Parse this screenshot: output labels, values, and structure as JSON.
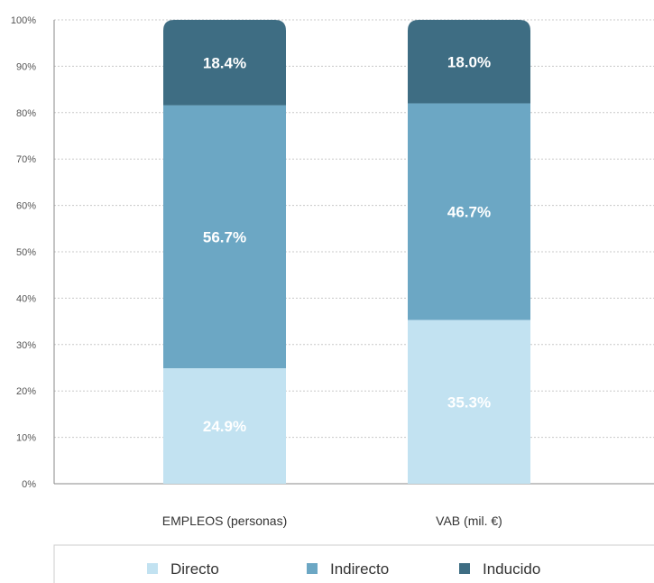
{
  "chart_data": {
    "type": "bar",
    "stacked": true,
    "normalized": true,
    "categories": [
      "EMPLEOS (personas)",
      "VAB (mil. €)"
    ],
    "series": [
      {
        "name": "Directo",
        "values": [
          24.9,
          35.3
        ],
        "labels": [
          "24.9%",
          "35.3%"
        ],
        "color": "#c2e2f1"
      },
      {
        "name": "Indirecto",
        "values": [
          56.7,
          46.7
        ],
        "labels": [
          "56.7%",
          "46.7%"
        ],
        "color": "#6ca7c4"
      },
      {
        "name": "Inducido",
        "values": [
          18.4,
          18.0
        ],
        "labels": [
          "18.4%",
          "18.0%"
        ],
        "color": "#3e6d83"
      }
    ],
    "ylim": [
      0,
      100
    ],
    "y_ticks": [
      "0%",
      "10%",
      "20%",
      "30%",
      "40%",
      "50%",
      "60%",
      "70%",
      "80%",
      "90%",
      "100%"
    ],
    "grid": true,
    "legend_position": "bottom"
  }
}
